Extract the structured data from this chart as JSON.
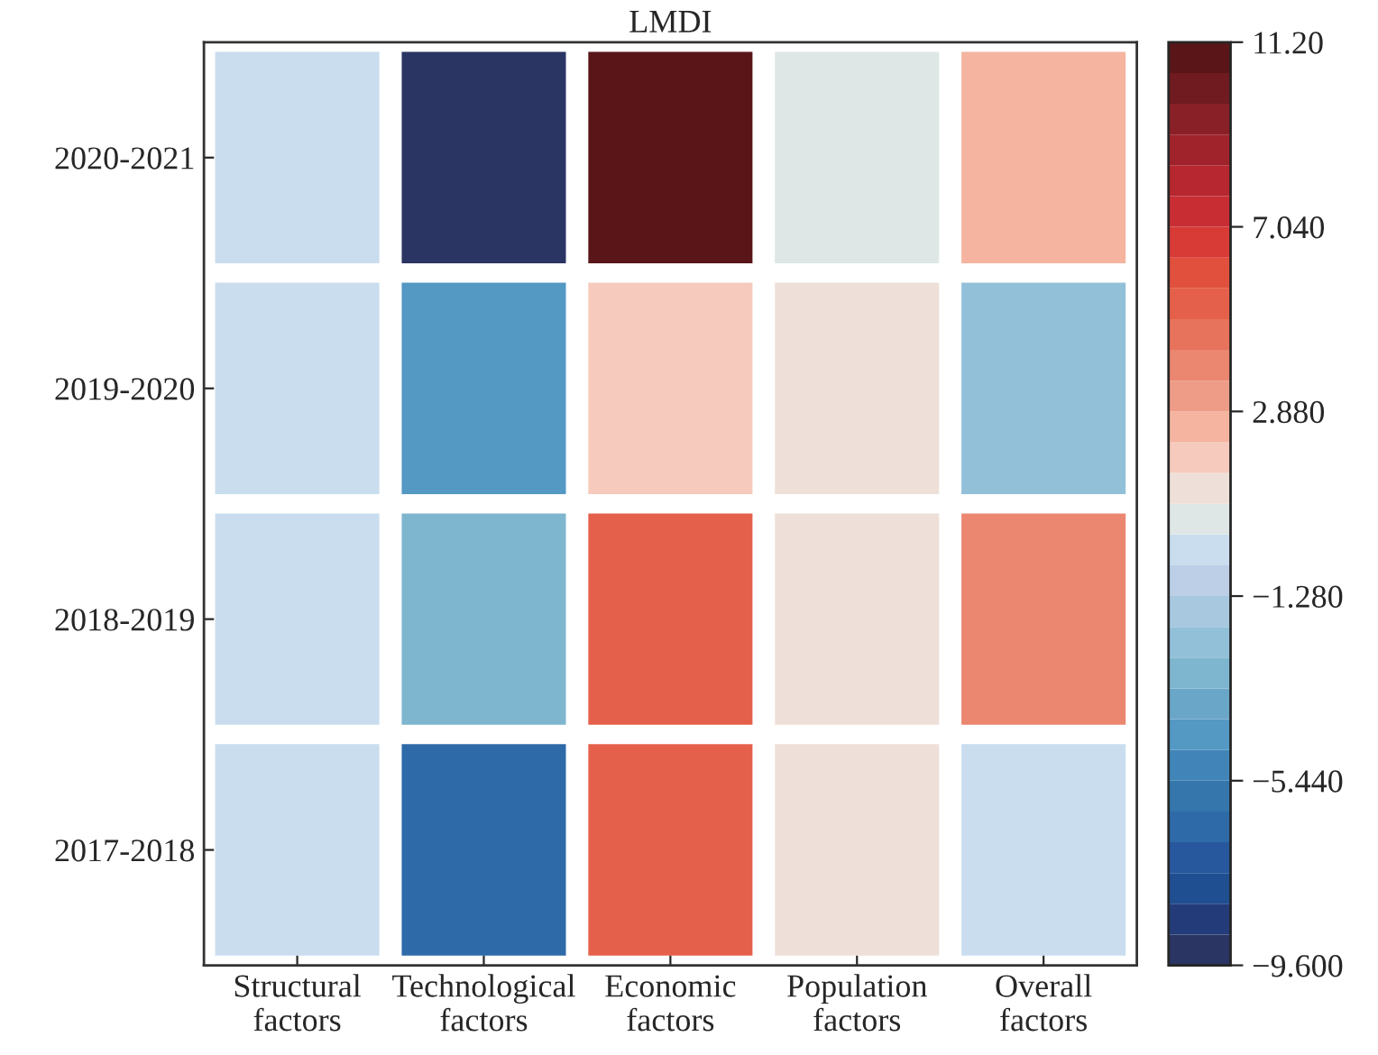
{
  "chart_data": {
    "type": "heatmap",
    "title": "LMDI",
    "categories": [
      "Structural\nfactors",
      "Technological\nfactors",
      "Economic\nfactors",
      "Population\nfactors",
      "Overall\nfactors"
    ],
    "y_categories": [
      "2020-2021",
      "2019-2020",
      "2018-2019",
      "2017-2018"
    ],
    "cells": [
      [
        -0.3,
        -9.4,
        10.9,
        0.45,
        2.5
      ],
      [
        -0.3,
        -4.4,
        1.8,
        1.1,
        -2.3
      ],
      [
        -0.3,
        -3.0,
        5.3,
        1.1,
        3.9
      ],
      [
        -0.3,
        -6.5,
        5.3,
        1.1,
        -0.3
      ]
    ],
    "clim": [
      -9.6,
      11.2
    ],
    "cticks": [
      {
        "value": -9.6,
        "label": "−9.600"
      },
      {
        "value": -5.44,
        "label": "−5.440"
      },
      {
        "value": -1.28,
        "label": "−1.280"
      },
      {
        "value": 2.88,
        "label": "2.880"
      },
      {
        "value": 7.04,
        "label": "7.040"
      },
      {
        "value": 11.2,
        "label": "11.20"
      }
    ]
  }
}
